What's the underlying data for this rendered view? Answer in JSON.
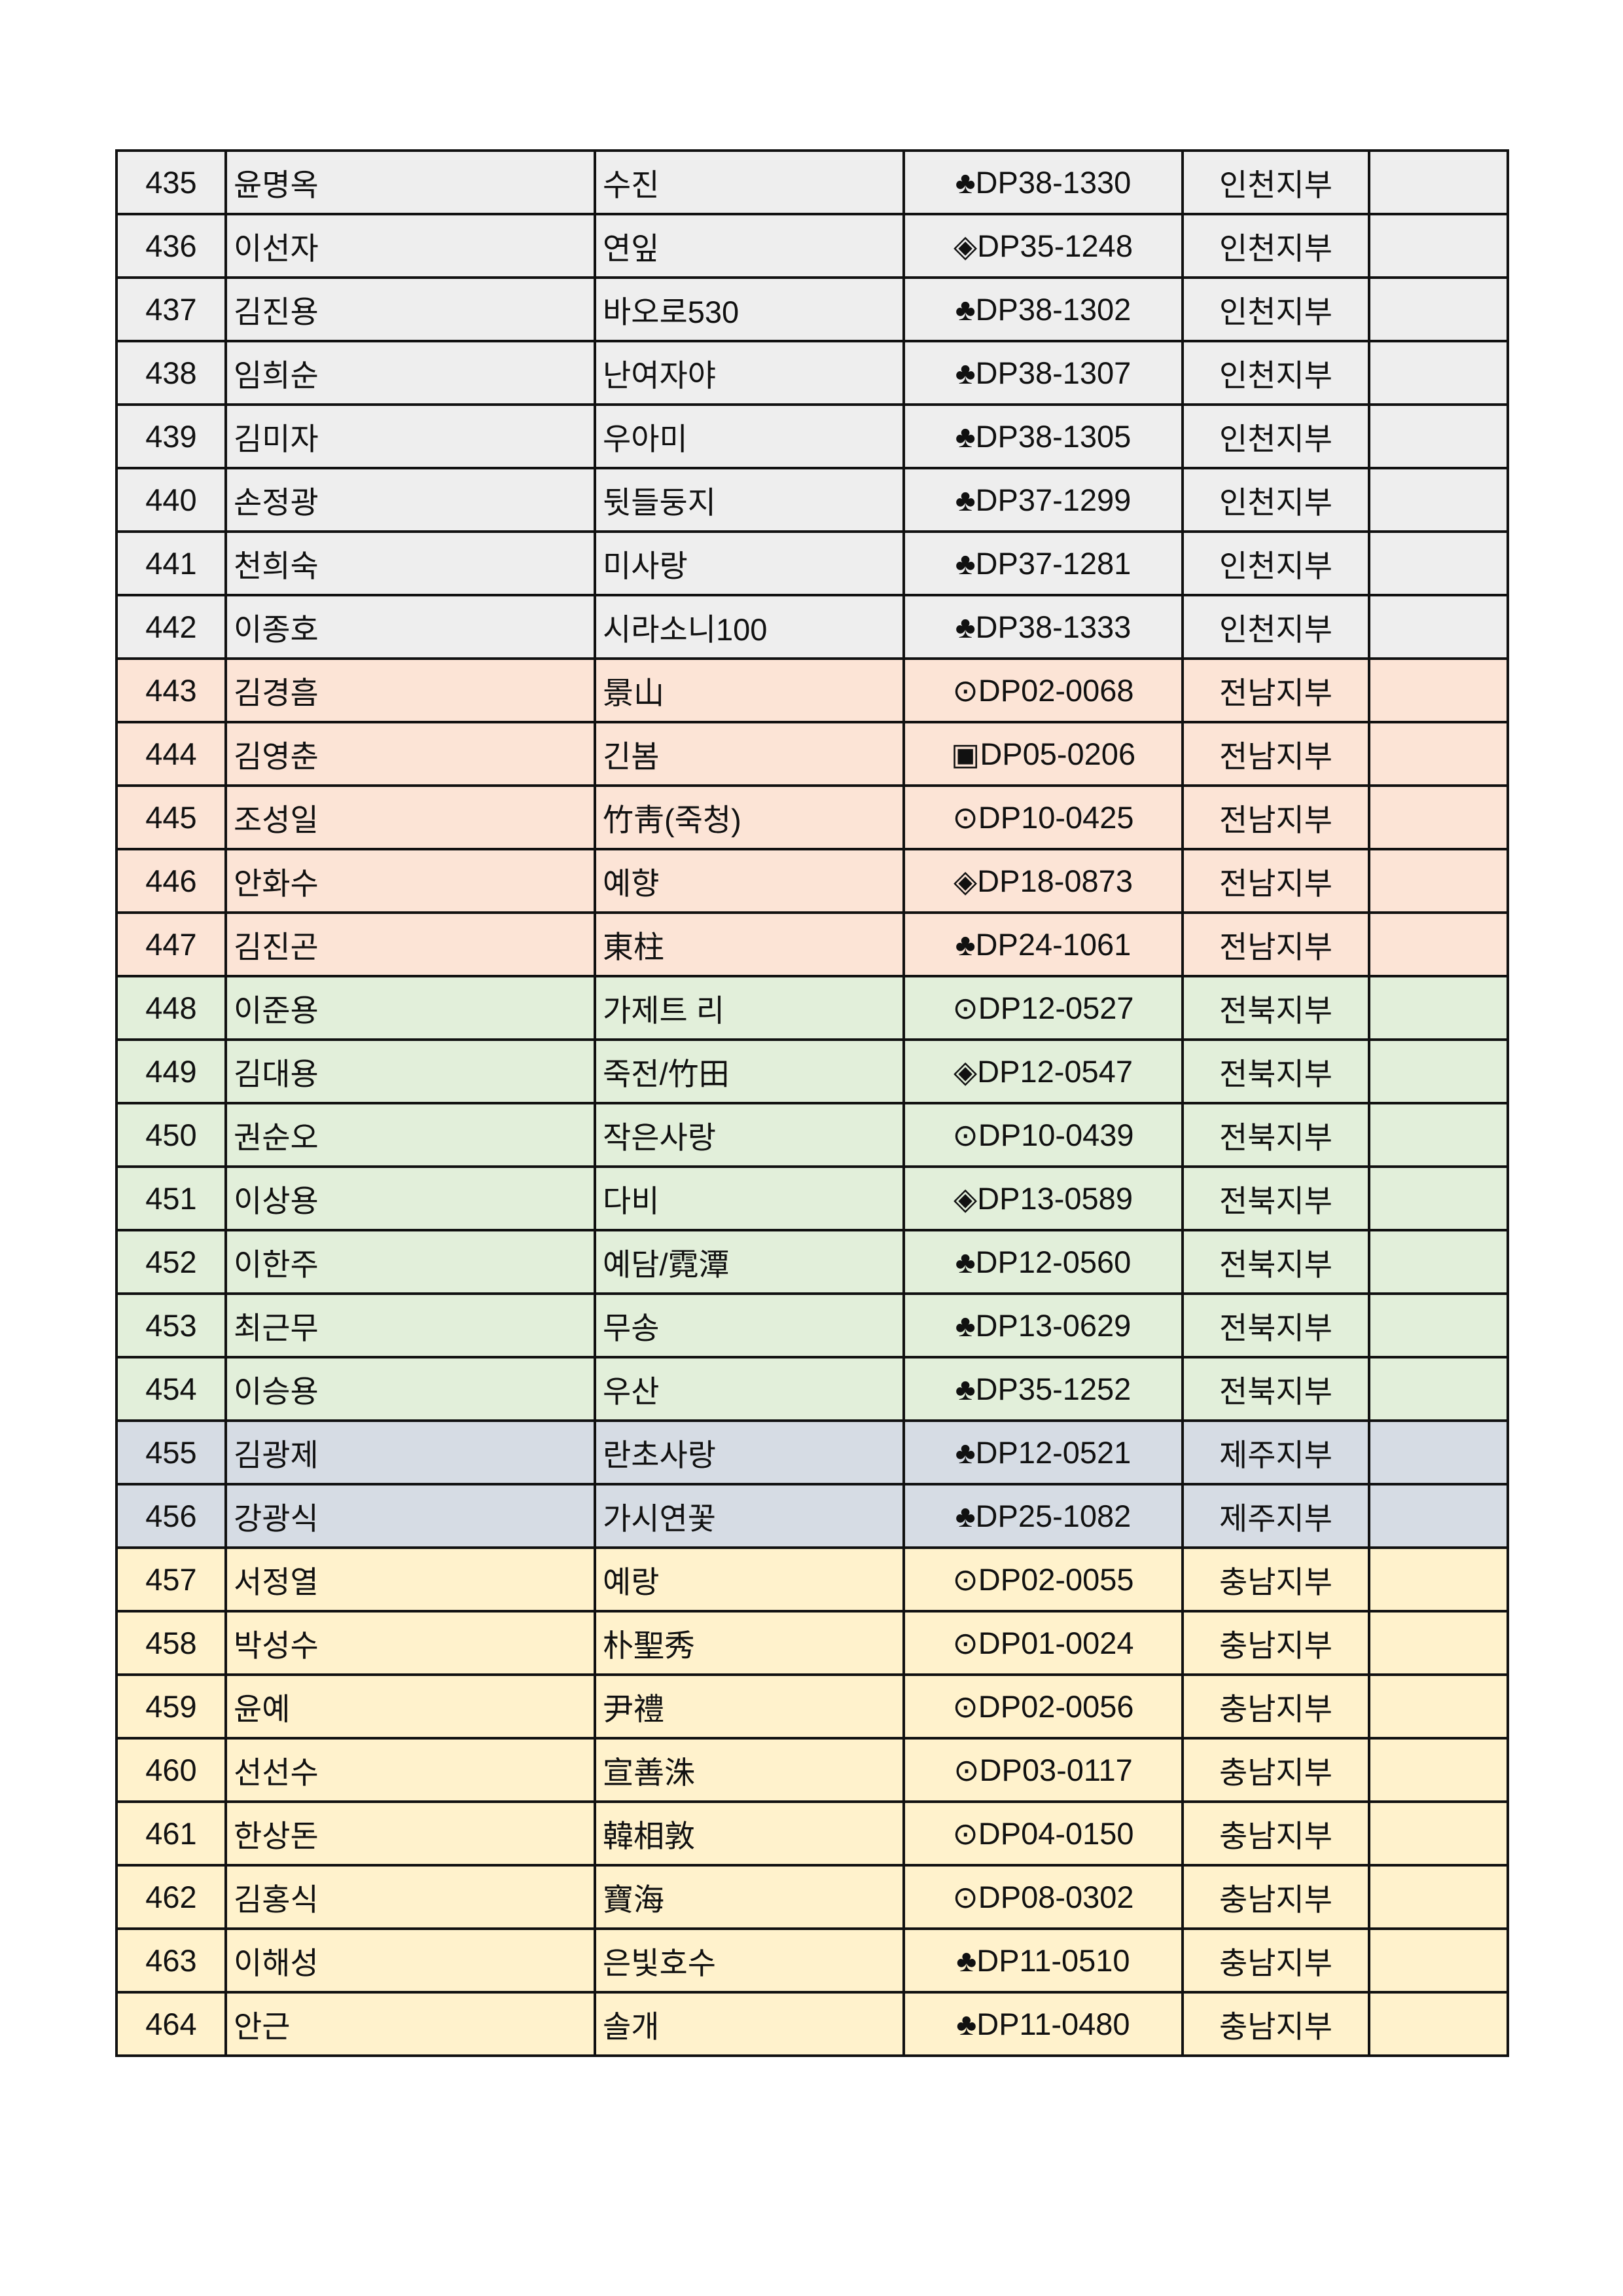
{
  "group_colors": {
    "인천지부": "#eeeeee",
    "전남지부": "#fce4d6",
    "전북지부": "#e2efda",
    "제주지부": "#d6dce4",
    "충남지부": "#fff2cc"
  },
  "rows": [
    {
      "no": "435",
      "name": "윤명옥",
      "variety": "수진",
      "code": "♣DP38-1330",
      "branch": "인천지부",
      "note": ""
    },
    {
      "no": "436",
      "name": "이선자",
      "variety": "연잎",
      "code": "◈DP35-1248",
      "branch": "인천지부",
      "note": ""
    },
    {
      "no": "437",
      "name": "김진용",
      "variety": "바오로530",
      "code": "♣DP38-1302",
      "branch": "인천지부",
      "note": ""
    },
    {
      "no": "438",
      "name": "임희순",
      "variety": "난여자야",
      "code": "♣DP38-1307",
      "branch": "인천지부",
      "note": ""
    },
    {
      "no": "439",
      "name": "김미자",
      "variety": "우아미",
      "code": "♣DP38-1305",
      "branch": "인천지부",
      "note": ""
    },
    {
      "no": "440",
      "name": "손정광",
      "variety": "뒷들둥지",
      "code": "♣DP37-1299",
      "branch": "인천지부",
      "note": ""
    },
    {
      "no": "441",
      "name": "천희숙",
      "variety": "미사랑",
      "code": "♣DP37-1281",
      "branch": "인천지부",
      "note": ""
    },
    {
      "no": "442",
      "name": "이종호",
      "variety": "시라소니100",
      "code": "♣DP38-1333",
      "branch": "인천지부",
      "note": ""
    },
    {
      "no": "443",
      "name": "김경흠",
      "variety": "景山",
      "code": "⊙DP02-0068",
      "branch": "전남지부",
      "note": ""
    },
    {
      "no": "444",
      "name": "김영춘",
      "variety": "긴봄",
      "code": "▣DP05-0206",
      "branch": "전남지부",
      "note": ""
    },
    {
      "no": "445",
      "name": "조성일",
      "variety": "竹靑(죽청)",
      "code": "⊙DP10-0425",
      "branch": "전남지부",
      "note": ""
    },
    {
      "no": "446",
      "name": "안화수",
      "variety": "예향",
      "code": "◈DP18-0873",
      "branch": "전남지부",
      "note": ""
    },
    {
      "no": "447",
      "name": "김진곤",
      "variety": "東柱",
      "code": "♣DP24-1061",
      "branch": "전남지부",
      "note": ""
    },
    {
      "no": "448",
      "name": "이준용",
      "variety": "가제트 리",
      "code": "⊙DP12-0527",
      "branch": "전북지부",
      "note": ""
    },
    {
      "no": "449",
      "name": "김대용",
      "variety": "죽전/竹田",
      "code": "◈DP12-0547",
      "branch": "전북지부",
      "note": ""
    },
    {
      "no": "450",
      "name": "권순오",
      "variety": "작은사랑",
      "code": "⊙DP10-0439",
      "branch": "전북지부",
      "note": ""
    },
    {
      "no": "451",
      "name": "이상용",
      "variety": "다비",
      "code": "◈DP13-0589",
      "branch": "전북지부",
      "note": ""
    },
    {
      "no": "452",
      "name": "이한주",
      "variety": "예담/霓潭",
      "code": "♣DP12-0560",
      "branch": "전북지부",
      "note": ""
    },
    {
      "no": "453",
      "name": "최근무",
      "variety": "무송",
      "code": "♣DP13-0629",
      "branch": "전북지부",
      "note": ""
    },
    {
      "no": "454",
      "name": "이승용",
      "variety": "우산",
      "code": "♣DP35-1252",
      "branch": "전북지부",
      "note": ""
    },
    {
      "no": "455",
      "name": "김광제",
      "variety": "란초사랑",
      "code": "♣DP12-0521",
      "branch": "제주지부",
      "note": ""
    },
    {
      "no": "456",
      "name": "강광식",
      "variety": "가시연꽃",
      "code": "♣DP25-1082",
      "branch": "제주지부",
      "note": ""
    },
    {
      "no": "457",
      "name": "서정열",
      "variety": "예랑",
      "code": "⊙DP02-0055",
      "branch": "충남지부",
      "note": ""
    },
    {
      "no": "458",
      "name": "박성수",
      "variety": "朴聖秀",
      "code": "⊙DP01-0024",
      "branch": "충남지부",
      "note": ""
    },
    {
      "no": "459",
      "name": "윤예",
      "variety": "尹禮",
      "code": "⊙DP02-0056",
      "branch": "충남지부",
      "note": ""
    },
    {
      "no": "460",
      "name": "선선수",
      "variety": "宣善洙",
      "code": "⊙DP03-0117",
      "branch": "충남지부",
      "note": ""
    },
    {
      "no": "461",
      "name": "한상돈",
      "variety": "韓相敦",
      "code": "⊙DP04-0150",
      "branch": "충남지부",
      "note": ""
    },
    {
      "no": "462",
      "name": "김홍식",
      "variety": "寶海",
      "code": "⊙DP08-0302",
      "branch": "충남지부",
      "note": ""
    },
    {
      "no": "463",
      "name": "이해성",
      "variety": "은빛호수",
      "code": "♣DP11-0510",
      "branch": "충남지부",
      "note": ""
    },
    {
      "no": "464",
      "name": "안근",
      "variety": "솔개",
      "code": "♣DP11-0480",
      "branch": "충남지부",
      "note": ""
    }
  ]
}
